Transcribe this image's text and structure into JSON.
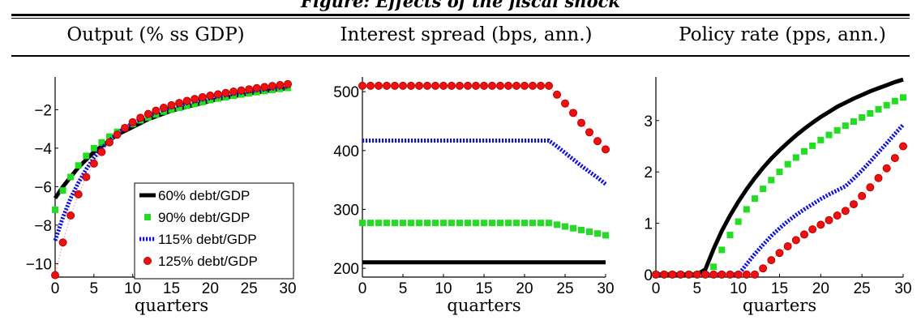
{
  "figure_heading": "Figure: Effects of the fiscal shock",
  "chart_data": [
    {
      "type": "line",
      "title": "Output (% ss GDP)",
      "xlabel": "quarters",
      "xlim": [
        0,
        30
      ],
      "ylim": [
        -10.7,
        -0.3
      ],
      "xticks": [
        0,
        5,
        10,
        15,
        20,
        25,
        30
      ],
      "yticks": [
        -10,
        -8,
        -6,
        -4,
        -2
      ],
      "legend": "bottom-right",
      "series": [
        {
          "name": "60% debt/GDP",
          "color": "#000000",
          "style": "solid",
          "marker": "none",
          "y": [
            -6.6,
            -6.0,
            -5.5,
            -5.0,
            -4.6,
            -4.2,
            -3.9,
            -3.6,
            -3.3,
            -3.1,
            -2.9,
            -2.7,
            -2.5,
            -2.35,
            -2.2,
            -2.05,
            -1.95,
            -1.85,
            -1.75,
            -1.65,
            -1.55,
            -1.45,
            -1.38,
            -1.3,
            -1.23,
            -1.16,
            -1.1,
            -1.04,
            -0.98,
            -0.93,
            -0.88
          ]
        },
        {
          "name": "90% debt/GDP",
          "color": "#22dd22",
          "style": "none",
          "marker": "square",
          "y": [
            -7.2,
            -6.2,
            -5.5,
            -4.9,
            -4.4,
            -4.0,
            -3.7,
            -3.4,
            -3.15,
            -2.95,
            -2.75,
            -2.55,
            -2.4,
            -2.25,
            -2.1,
            -2.0,
            -1.9,
            -1.8,
            -1.7,
            -1.6,
            -1.5,
            -1.42,
            -1.35,
            -1.28,
            -1.21,
            -1.15,
            -1.09,
            -1.03,
            -0.97,
            -0.92,
            -0.87
          ]
        },
        {
          "name": "115% debt/GDP",
          "color": "#1111dd",
          "style": "dotted",
          "marker": "none",
          "y": [
            -8.8,
            -7.6,
            -6.6,
            -5.8,
            -5.1,
            -4.5,
            -4.0,
            -3.6,
            -3.25,
            -2.95,
            -2.7,
            -2.5,
            -2.3,
            -2.15,
            -2.0,
            -1.88,
            -1.77,
            -1.67,
            -1.57,
            -1.48,
            -1.4,
            -1.32,
            -1.25,
            -1.18,
            -1.12,
            -1.06,
            -1.0,
            -0.95,
            -0.9,
            -0.85,
            -0.8
          ]
        },
        {
          "name": "125% debt/GDP",
          "color": "#ee1111",
          "style": "none",
          "marker": "circle",
          "y": [
            -10.6,
            -8.9,
            -7.5,
            -6.4,
            -5.5,
            -4.8,
            -4.2,
            -3.7,
            -3.3,
            -2.95,
            -2.65,
            -2.42,
            -2.22,
            -2.05,
            -1.9,
            -1.77,
            -1.65,
            -1.54,
            -1.44,
            -1.35,
            -1.27,
            -1.2,
            -1.13,
            -1.06,
            -1.0,
            -0.94,
            -0.88,
            -0.82,
            -0.77,
            -0.72,
            -0.67
          ]
        }
      ]
    },
    {
      "type": "line",
      "title": "Interest spread (bps, ann.)",
      "xlabel": "quarters",
      "xlim": [
        0,
        30
      ],
      "ylim": [
        185,
        525
      ],
      "xticks": [
        0,
        5,
        10,
        15,
        20,
        25,
        30
      ],
      "yticks": [
        200,
        300,
        400,
        500
      ],
      "series": [
        {
          "name": "60% debt/GDP",
          "color": "#000000",
          "style": "solid",
          "marker": "none",
          "y": [
            210,
            210,
            210,
            210,
            210,
            210,
            210,
            210,
            210,
            210,
            210,
            210,
            210,
            210,
            210,
            210,
            210,
            210,
            210,
            210,
            210,
            210,
            210,
            210,
            210,
            210,
            210,
            210,
            210,
            210,
            210
          ]
        },
        {
          "name": "90% debt/GDP",
          "color": "#22dd22",
          "style": "none",
          "marker": "square",
          "y": [
            277,
            277,
            277,
            277,
            277,
            277,
            277,
            277,
            277,
            277,
            277,
            277,
            277,
            277,
            277,
            277,
            277,
            277,
            277,
            277,
            277,
            277,
            277,
            277,
            274,
            271,
            268,
            265,
            262,
            259,
            256
          ]
        },
        {
          "name": "115% debt/GDP",
          "color": "#1111dd",
          "style": "dotted",
          "marker": "none",
          "y": [
            417,
            417,
            417,
            417,
            417,
            417,
            417,
            417,
            417,
            417,
            417,
            417,
            417,
            417,
            417,
            417,
            417,
            417,
            417,
            417,
            417,
            417,
            417,
            417,
            407,
            396,
            385,
            374,
            364,
            354,
            343
          ]
        },
        {
          "name": "125% debt/GDP",
          "color": "#ee1111",
          "style": "none",
          "marker": "circle",
          "y": [
            510,
            510,
            510,
            510,
            510,
            510,
            510,
            510,
            510,
            510,
            510,
            510,
            510,
            510,
            510,
            510,
            510,
            510,
            510,
            510,
            510,
            510,
            510,
            510,
            495,
            480,
            464,
            447,
            431,
            416,
            402
          ]
        }
      ]
    },
    {
      "type": "line",
      "title": "Policy rate (pps, ann.)",
      "xlabel": "quarters",
      "xlim": [
        0,
        30
      ],
      "ylim": [
        -0.05,
        3.85
      ],
      "xticks": [
        0,
        5,
        10,
        15,
        20,
        25,
        30
      ],
      "yticks": [
        0,
        1,
        2,
        3
      ],
      "series": [
        {
          "name": "60% debt/GDP",
          "color": "#000000",
          "style": "solid",
          "marker": "none",
          "y": [
            0,
            0,
            0,
            0,
            0,
            0,
            0.1,
            0.5,
            0.85,
            1.15,
            1.42,
            1.66,
            1.88,
            2.08,
            2.26,
            2.42,
            2.57,
            2.71,
            2.84,
            2.96,
            3.07,
            3.17,
            3.27,
            3.35,
            3.43,
            3.5,
            3.57,
            3.63,
            3.69,
            3.75,
            3.8
          ]
        },
        {
          "name": "90% debt/GDP",
          "color": "#22dd22",
          "style": "none",
          "marker": "square",
          "y": [
            0,
            0,
            0,
            0,
            0,
            0,
            0,
            0.15,
            0.48,
            0.77,
            1.03,
            1.27,
            1.48,
            1.67,
            1.84,
            2.0,
            2.15,
            2.28,
            2.4,
            2.51,
            2.62,
            2.72,
            2.81,
            2.9,
            2.98,
            3.06,
            3.14,
            3.22,
            3.3,
            3.38,
            3.45
          ]
        },
        {
          "name": "115% debt/GDP",
          "color": "#1111dd",
          "style": "dotted",
          "marker": "none",
          "y": [
            0,
            0,
            0,
            0,
            0,
            0,
            0,
            0,
            0,
            0,
            0,
            0.2,
            0.4,
            0.58,
            0.75,
            0.9,
            1.04,
            1.16,
            1.27,
            1.37,
            1.47,
            1.56,
            1.64,
            1.72,
            1.87,
            2.03,
            2.2,
            2.38,
            2.56,
            2.74,
            2.92
          ]
        },
        {
          "name": "125% debt/GDP",
          "color": "#ee1111",
          "style": "none",
          "marker": "circle",
          "y": [
            0,
            0,
            0,
            0,
            0,
            0,
            0,
            0,
            0,
            0,
            0,
            0,
            0,
            0.12,
            0.28,
            0.42,
            0.55,
            0.67,
            0.78,
            0.88,
            0.97,
            1.06,
            1.15,
            1.24,
            1.37,
            1.53,
            1.7,
            1.88,
            2.07,
            2.27,
            2.5
          ]
        }
      ]
    }
  ]
}
